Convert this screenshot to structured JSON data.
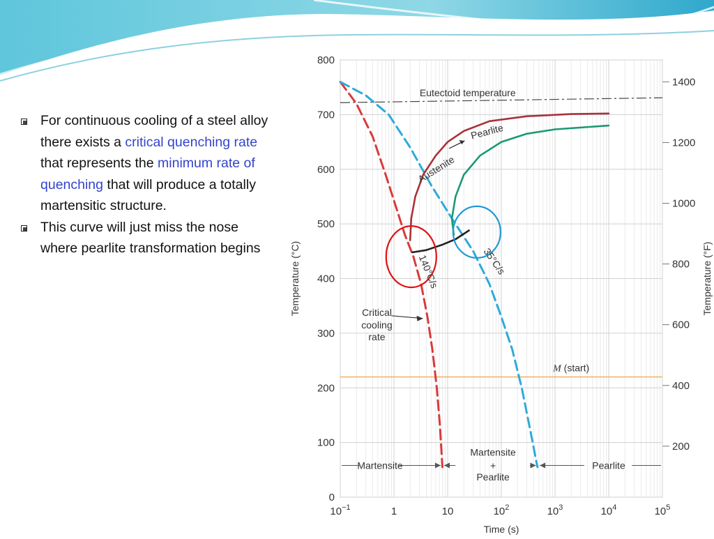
{
  "bullets": [
    {
      "parts": [
        {
          "text": "For continuous cooling of a steel alloy there exists a ",
          "highlight": false
        },
        {
          "text": "critical quenching rate",
          "highlight": true
        },
        {
          "text": " that represents the ",
          "highlight": false
        },
        {
          "text": "minimum rate of quenching",
          "highlight": true
        },
        {
          "text": " that will produce a totally martensitic structure.",
          "highlight": false
        }
      ]
    },
    {
      "parts": [
        {
          "text": "This curve will just miss the nose where pearlite transformation begins",
          "highlight": false
        }
      ]
    }
  ],
  "colors": {
    "highlight": "#3344cc",
    "red_curve": "#d93a3a",
    "blue_curve": "#2eaad8",
    "austenite_pearlite_curve": "#a8323a",
    "pearlite_end_curve": "#1a9975",
    "ms_line": "#f2b36b",
    "circle_red": "#e01010",
    "circle_blue": "#1f9ad8"
  },
  "chart_data": {
    "type": "line",
    "x_scale": "log",
    "xlim": [
      0.1,
      100000
    ],
    "ylim": [
      0,
      800
    ],
    "xlabel": "Time (s)",
    "ylabel": "Temperature (°C)",
    "y2label": "Temperature (°F)",
    "x_ticks": [
      {
        "value": 0.1,
        "base": "10",
        "exp": "−1"
      },
      {
        "value": 1,
        "base": "1",
        "exp": ""
      },
      {
        "value": 10,
        "base": "10",
        "exp": ""
      },
      {
        "value": 100,
        "base": "10",
        "exp": "2"
      },
      {
        "value": 1000,
        "base": "10",
        "exp": "3"
      },
      {
        "value": 10000,
        "base": "10",
        "exp": "4"
      },
      {
        "value": 100000,
        "base": "10",
        "exp": "5"
      }
    ],
    "y_ticks": [
      "0",
      "100",
      "200",
      "300",
      "400",
      "500",
      "600",
      "700",
      "800"
    ],
    "y2_ticks": [
      {
        "c": 93.3,
        "label": "200"
      },
      {
        "c": 204.4,
        "label": "400"
      },
      {
        "c": 315.6,
        "label": "600"
      },
      {
        "c": 426.7,
        "label": "800"
      },
      {
        "c": 537.8,
        "label": "1000"
      },
      {
        "c": 648.9,
        "label": "1200"
      },
      {
        "c": 760,
        "label": "1400"
      }
    ],
    "series": [
      {
        "key": "cool140",
        "label": "140°C/s",
        "style": "dashed",
        "color": "#d93a3a",
        "points": [
          [
            0.1,
            760
          ],
          [
            0.2,
            720
          ],
          [
            0.4,
            660
          ],
          [
            0.7,
            590
          ],
          [
            1.1,
            530
          ],
          [
            1.6,
            480
          ],
          [
            2.3,
            440
          ],
          [
            3.2,
            390
          ],
          [
            4.2,
            330
          ],
          [
            5.2,
            270
          ],
          [
            6.3,
            200
          ],
          [
            7.2,
            130
          ],
          [
            8,
            55
          ]
        ]
      },
      {
        "key": "cool35",
        "label": "35°C/s",
        "style": "dashed",
        "color": "#2eaad8",
        "points": [
          [
            0.1,
            760
          ],
          [
            0.3,
            735
          ],
          [
            0.8,
            700
          ],
          [
            2,
            640
          ],
          [
            5,
            570
          ],
          [
            12,
            510
          ],
          [
            30,
            450
          ],
          [
            60,
            390
          ],
          [
            100,
            330
          ],
          [
            160,
            270
          ],
          [
            240,
            200
          ],
          [
            350,
            120
          ],
          [
            470,
            55
          ]
        ]
      },
      {
        "key": "pearlite_start",
        "label": "Austenite → Pearlite",
        "style": "solid",
        "color": "#a8323a",
        "points": [
          [
            2,
            470
          ],
          [
            2.1,
            510
          ],
          [
            2.5,
            550
          ],
          [
            3.5,
            590
          ],
          [
            6,
            625
          ],
          [
            10,
            650
          ],
          [
            20,
            670
          ],
          [
            60,
            688
          ],
          [
            300,
            697
          ],
          [
            2000,
            701
          ],
          [
            10000,
            702
          ]
        ]
      },
      {
        "key": "pearlite_finish",
        "label": "",
        "style": "solid",
        "color": "#1a9975",
        "points": [
          [
            13,
            480
          ],
          [
            12,
            510
          ],
          [
            14,
            550
          ],
          [
            20,
            590
          ],
          [
            40,
            625
          ],
          [
            100,
            650
          ],
          [
            300,
            665
          ],
          [
            1000,
            673
          ],
          [
            10000,
            680
          ]
        ]
      },
      {
        "key": "bainite_link",
        "label": "",
        "style": "solid",
        "color": "#222222",
        "points": [
          [
            2.2,
            448
          ],
          [
            4,
            452
          ],
          [
            8,
            462
          ],
          [
            14,
            472
          ],
          [
            25,
            488
          ]
        ]
      }
    ],
    "reference_lines": [
      {
        "key": "eutectoid",
        "y": 727,
        "style": "dashdot",
        "label": "Eutectoid temperature"
      },
      {
        "key": "ms",
        "y": 220,
        "style": "solid",
        "label": "M (start)"
      }
    ],
    "annotations": {
      "curve_140": "140°C/s",
      "curve_35": "35°C/s",
      "austenite": "Austenite",
      "pearlite": "Pearlite",
      "critical_line1": "Critical",
      "critical_line2": "cooling",
      "critical_line3": "rate",
      "ms_symbol": "M",
      "ms_rest": "(start)",
      "eutectoid": "Eutectoid temperature",
      "region_martensite": "Martensite",
      "region_mixed_line1": "Martensite",
      "region_mixed_plus": "+",
      "region_mixed_line2": "Pearlite",
      "region_pearlite": "Pearlite"
    },
    "highlight_circles": [
      {
        "key": "red",
        "x": 2.1,
        "y": 440,
        "color": "#e01010"
      },
      {
        "key": "blue",
        "x": 35,
        "y": 485,
        "color": "#1f9ad8"
      }
    ]
  }
}
